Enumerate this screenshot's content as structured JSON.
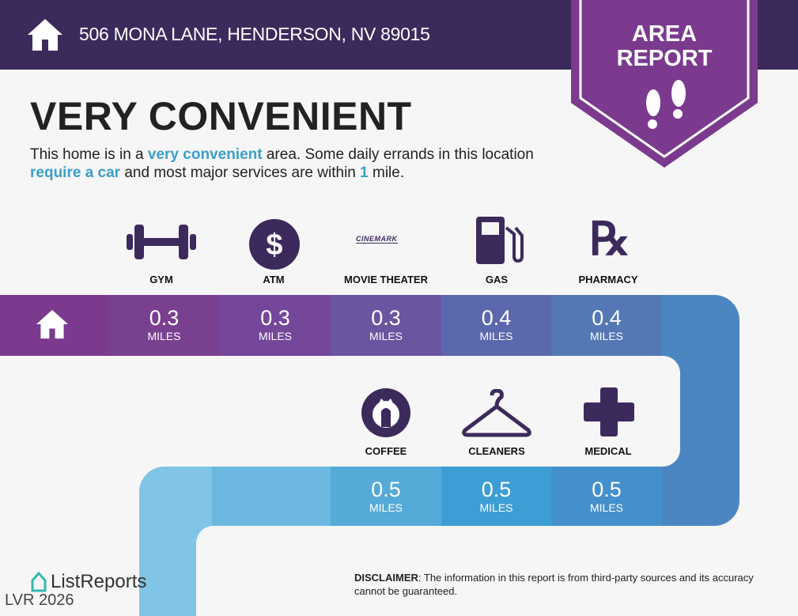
{
  "header": {
    "address": "506 MONA LANE, HENDERSON, NV 89015",
    "icon": "home-icon"
  },
  "badge": {
    "line1": "AREA",
    "line2": "REPORT",
    "icon": "footprints-icon"
  },
  "title": "VERY CONVENIENT",
  "description": {
    "t1": "This home is in a ",
    "h1": "very convenient",
    "t2": " area. Some daily errands in this location ",
    "h2": "require a car",
    "t3": " and most major services are within ",
    "h3": "1",
    "t4": " mile."
  },
  "row1": [
    {
      "label": "GYM",
      "value": "0.3",
      "unit": "MILES",
      "icon": "dumbbell-icon"
    },
    {
      "label": "ATM",
      "value": "0.3",
      "unit": "MILES",
      "icon": "dollar-icon"
    },
    {
      "label": "MOVIE THEATER",
      "value": "0.3",
      "unit": "MILES",
      "icon": "cinemark-logo",
      "logo_text": "CINEMARK"
    },
    {
      "label": "GAS",
      "value": "0.4",
      "unit": "MILES",
      "icon": "gas-pump-icon"
    },
    {
      "label": "PHARMACY",
      "value": "0.4",
      "unit": "MILES",
      "icon": "rx-icon",
      "glyph": "℞"
    }
  ],
  "row2": [
    {
      "label": "COFFEE",
      "value": "0.5",
      "unit": "MILES",
      "icon": "starbucks-logo"
    },
    {
      "label": "CLEANERS",
      "value": "0.5",
      "unit": "MILES",
      "icon": "hanger-icon"
    },
    {
      "label": "MEDICAL",
      "value": "0.5",
      "unit": "MILES",
      "icon": "medical-cross-icon"
    }
  ],
  "footer": {
    "brand": "ListReports",
    "watermark": "LVR 2026",
    "disclaimer_label": "DISCLAIMER",
    "disclaimer_text": ": The information in this report is from third-party sources and its accuracy cannot be guaranteed."
  },
  "colors": {
    "header": "#3d2a5c",
    "badge": "#7b3a8e",
    "accent": "#3aa0c7",
    "icon": "#3d2a5c"
  }
}
